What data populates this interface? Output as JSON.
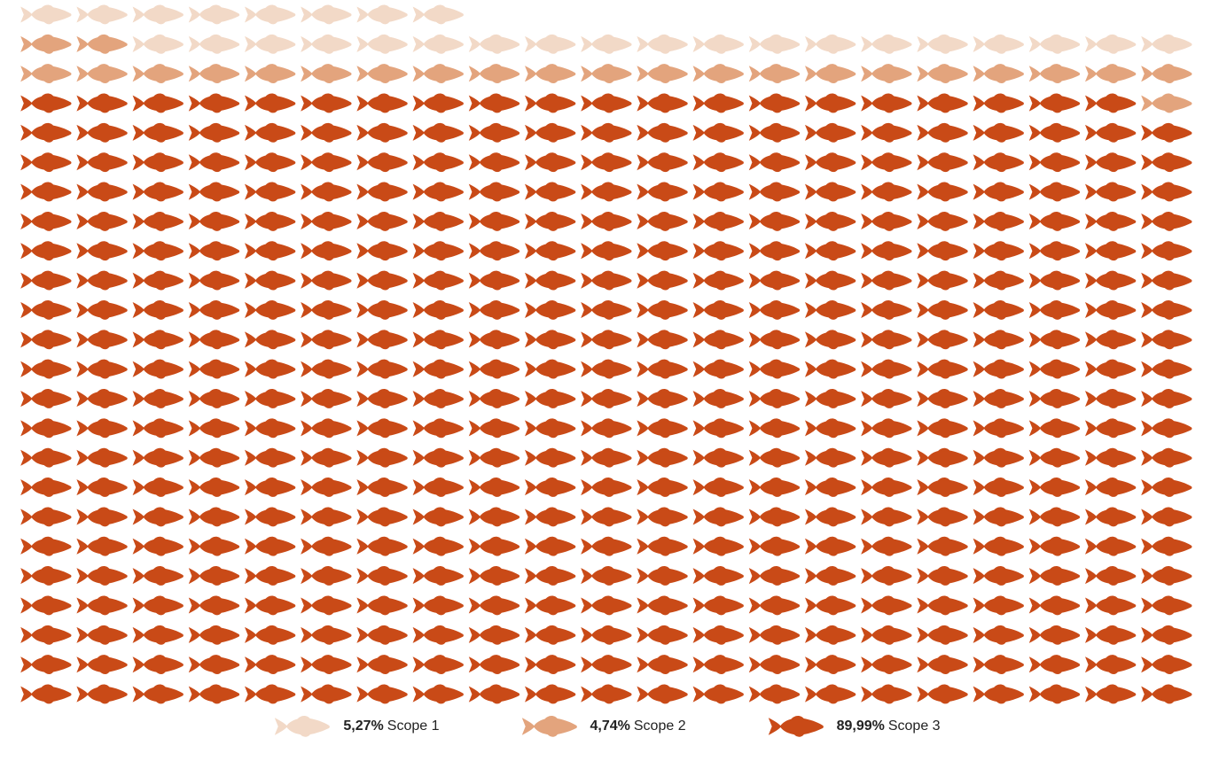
{
  "chart_data": {
    "type": "waffle",
    "icon": "fish-icon",
    "grid": {
      "columns": 21,
      "rows": 24,
      "fill_order": "right-to-left, top-to-bottom"
    },
    "series": [
      {
        "name": "Scope 1",
        "percent_label": "5,27%",
        "value": 5.27,
        "count": 27,
        "color": "#f2d9c7"
      },
      {
        "name": "Scope 2",
        "percent_label": "4,74%",
        "value": 4.74,
        "count": 24,
        "color": "#e3a47d"
      },
      {
        "name": "Scope 3",
        "percent_label": "89,99%",
        "value": 89.99,
        "count": 440,
        "color": "#c94a17"
      }
    ]
  },
  "legend": [
    {
      "percent": "5,27%",
      "label": "Scope 1",
      "color": "#f2d9c7"
    },
    {
      "percent": "4,74%",
      "label": "Scope 2",
      "color": "#e3a47d"
    },
    {
      "percent": "89,99%",
      "label": "Scope 3",
      "color": "#c94a17"
    }
  ]
}
